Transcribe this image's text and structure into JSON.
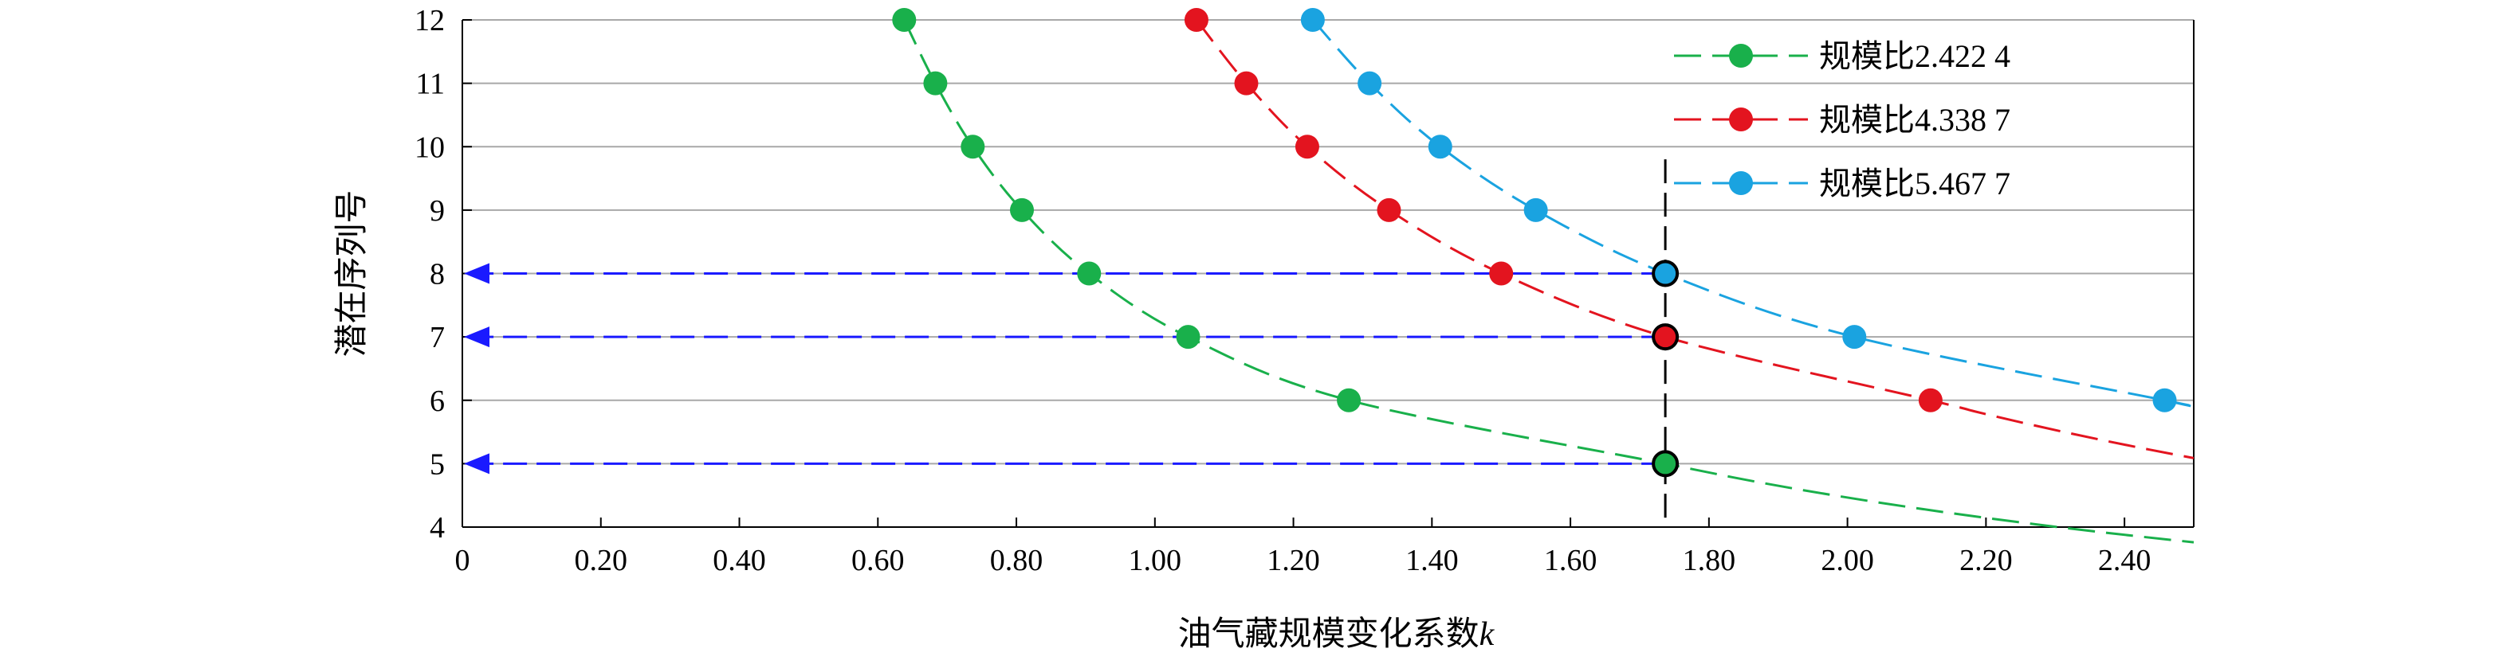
{
  "chart_data": {
    "type": "scatter",
    "xlabel": "油气藏规模变化系数",
    "xlabel_italic": "k",
    "ylabel": "潜在序列号",
    "xlim": [
      0,
      2.5
    ],
    "ylim": [
      4,
      12
    ],
    "x_ticks": [
      "0",
      "0.20",
      "0.40",
      "0.60",
      "0.80",
      "1.00",
      "1.20",
      "1.40",
      "1.60",
      "1.80",
      "2.00",
      "2.20",
      "2.40"
    ],
    "y_ticks": [
      "4",
      "5",
      "6",
      "7",
      "8",
      "9",
      "10",
      "11",
      "12"
    ],
    "grid": "horizontal",
    "legend_position": "top-right",
    "series": [
      {
        "name": "规模比2.422 4",
        "color": "#19b04b",
        "points": [
          {
            "x": 0.638,
            "y": 12
          },
          {
            "x": 0.683,
            "y": 11
          },
          {
            "x": 0.737,
            "y": 10
          },
          {
            "x": 0.808,
            "y": 9
          },
          {
            "x": 0.905,
            "y": 8
          },
          {
            "x": 1.048,
            "y": 7
          },
          {
            "x": 1.28,
            "y": 6
          },
          {
            "x": 1.737,
            "y": 5
          }
        ]
      },
      {
        "name": "规模比4.338 7",
        "color": "#e3141f",
        "points": [
          {
            "x": 1.06,
            "y": 12
          },
          {
            "x": 1.132,
            "y": 11
          },
          {
            "x": 1.22,
            "y": 10
          },
          {
            "x": 1.338,
            "y": 9
          },
          {
            "x": 1.5,
            "y": 8
          },
          {
            "x": 1.737,
            "y": 7
          },
          {
            "x": 2.12,
            "y": 6
          }
        ]
      },
      {
        "name": "规模比5.467 7",
        "color": "#1aa3e0",
        "points": [
          {
            "x": 1.228,
            "y": 12
          },
          {
            "x": 1.31,
            "y": 11
          },
          {
            "x": 1.412,
            "y": 10
          },
          {
            "x": 1.55,
            "y": 9
          },
          {
            "x": 1.737,
            "y": 8
          },
          {
            "x": 2.01,
            "y": 7
          },
          {
            "x": 2.458,
            "y": 6
          }
        ]
      }
    ],
    "vertical_reference": {
      "x": 1.737
    },
    "horizontal_arrows": [
      {
        "y": 8,
        "color": "#1a1aff"
      },
      {
        "y": 7,
        "color": "#1a1aff"
      },
      {
        "y": 5,
        "color": "#1a1aff"
      }
    ]
  }
}
